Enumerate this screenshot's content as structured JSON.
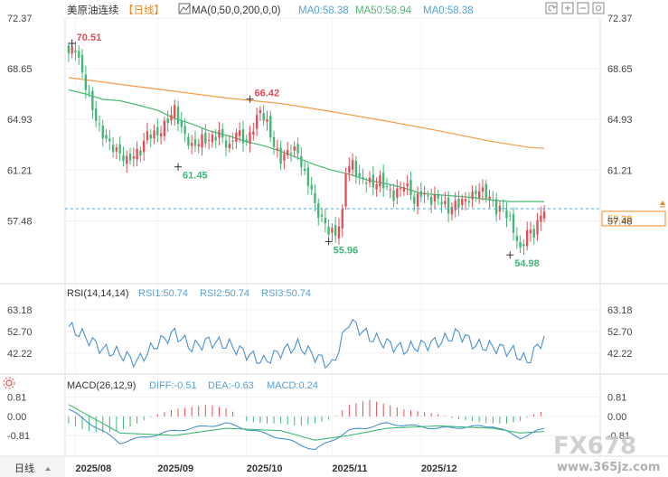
{
  "header": {
    "title": "美原油连续",
    "period": "【日线】",
    "ma_label": "MA(0,50,0,200,0,0)",
    "ma_a": "MA0:58.38",
    "ma_b": "MA50:58.94",
    "ma_c": "MA0:58.38"
  },
  "rsi_panel": {
    "label": "RSI(14,14,14)",
    "rsi1": "RSI1:50.74",
    "rsi2": "RSI2:50.74",
    "rsi3": "RSI3:50.74"
  },
  "macd_panel": {
    "label": "MACD(26,12,9)",
    "diff": "DIFF:-0.51",
    "dea": "DEA:-0.63",
    "macd": "MACD:0.24"
  },
  "bottom": {
    "period_button": "日线",
    "watermark_main": "FX678",
    "watermark_url": "www.365jz.com"
  },
  "icons": [
    "undo-icon",
    "zoom-in-icon",
    "zoom-out-icon",
    "settings-icon",
    "chart-type-icon",
    "macd-settings-icon"
  ],
  "chart_data": [
    {
      "type": "candlestick",
      "x_ticks": [
        "2025/08",
        "2025/09",
        "2025/10",
        "2025/11",
        "2025/12"
      ],
      "y_ticks": [
        "72.37",
        "68.65",
        "64.93",
        "61.21",
        "57.48"
      ],
      "ylim": [
        53.8,
        72.37
      ],
      "current_price": "58.38",
      "annotations": [
        {
          "label": "70.51",
          "kind": "high"
        },
        {
          "label": "61.45",
          "kind": "low"
        },
        {
          "label": "66.42",
          "kind": "high"
        },
        {
          "label": "55.96",
          "kind": "low"
        },
        {
          "label": "54.98",
          "kind": "low"
        }
      ],
      "colors": {
        "up": "#e74c55",
        "down": "#3eb874",
        "ma_long": "#f59c49",
        "ma_mid": "#4aba72",
        "price_line": "#5aa0cf"
      },
      "close_path": [
        [
          0,
          69.8
        ],
        [
          2,
          70.2
        ],
        [
          4,
          68.3
        ],
        [
          6,
          66.5
        ],
        [
          9,
          64.2
        ],
        [
          12,
          63.1
        ],
        [
          15,
          62.4
        ],
        [
          17,
          61.9
        ],
        [
          19,
          62.3
        ],
        [
          21,
          62.6
        ],
        [
          23,
          63.9
        ],
        [
          26,
          63.8
        ],
        [
          28,
          64.5
        ],
        [
          30,
          65.3
        ],
        [
          31,
          65.7
        ],
        [
          33,
          64.2
        ],
        [
          36,
          62.9
        ],
        [
          39,
          63.5
        ],
        [
          41,
          63.4
        ],
        [
          44,
          63.9
        ],
        [
          47,
          62.8
        ],
        [
          49,
          64.1
        ],
        [
          52,
          63.2
        ],
        [
          53,
          63.8
        ],
        [
          56,
          65.6
        ],
        [
          58,
          64.6
        ],
        [
          60,
          63.0
        ],
        [
          62,
          62.0
        ],
        [
          65,
          62.8
        ],
        [
          67,
          62.5
        ],
        [
          69,
          60.8
        ],
        [
          71,
          59.8
        ],
        [
          72,
          58.5
        ],
        [
          74,
          57.6
        ],
        [
          76,
          56.8
        ],
        [
          78,
          56.5
        ],
        [
          80,
          58.0
        ],
        [
          81,
          61.2
        ],
        [
          83,
          61.7
        ],
        [
          85,
          60.5
        ],
        [
          87,
          60.5
        ],
        [
          89,
          60.1
        ],
        [
          91,
          60.5
        ],
        [
          93,
          59.9
        ],
        [
          95,
          59.3
        ],
        [
          97,
          59.9
        ],
        [
          98,
          60.2
        ],
        [
          100,
          59.6
        ],
        [
          101,
          58.8
        ],
        [
          103,
          59.6
        ],
        [
          106,
          59.0
        ],
        [
          108,
          59.2
        ],
        [
          111,
          58.3
        ],
        [
          113,
          58.7
        ],
        [
          116,
          59.0
        ],
        [
          118,
          59.3
        ],
        [
          120,
          59.8
        ],
        [
          123,
          59.2
        ],
        [
          125,
          58.3
        ],
        [
          127,
          58.4
        ],
        [
          129,
          57.5
        ],
        [
          131,
          56.1
        ],
        [
          132,
          55.2
        ],
        [
          134,
          56.7
        ],
        [
          136,
          56.6
        ],
        [
          138,
          57.9
        ],
        [
          139,
          58.4
        ]
      ],
      "ma50_path": [
        [
          0,
          67.1
        ],
        [
          5,
          66.8
        ],
        [
          10,
          66.4
        ],
        [
          15,
          66.3
        ],
        [
          20,
          66.0
        ],
        [
          26,
          65.6
        ],
        [
          31,
          65.0
        ],
        [
          36,
          64.6
        ],
        [
          41,
          64.1
        ],
        [
          47,
          63.7
        ],
        [
          52,
          63.3
        ],
        [
          57,
          63.0
        ],
        [
          62,
          62.6
        ],
        [
          67,
          62.1
        ],
        [
          72,
          61.6
        ],
        [
          77,
          61.2
        ],
        [
          82,
          60.9
        ],
        [
          87,
          60.5
        ],
        [
          93,
          60.2
        ],
        [
          98,
          59.9
        ],
        [
          103,
          59.5
        ],
        [
          108,
          59.4
        ],
        [
          113,
          59.3
        ],
        [
          118,
          59.2
        ],
        [
          124,
          59.0
        ],
        [
          129,
          58.9
        ],
        [
          134,
          58.9
        ],
        [
          139,
          58.9
        ]
      ],
      "ma200_path": [
        [
          0,
          68.0
        ],
        [
          15,
          67.5
        ],
        [
          31,
          67.0
        ],
        [
          46,
          66.5
        ],
        [
          62,
          66.1
        ],
        [
          77,
          65.5
        ],
        [
          93,
          64.8
        ],
        [
          108,
          64.1
        ],
        [
          124,
          63.3
        ],
        [
          134,
          62.9
        ],
        [
          139,
          62.8
        ]
      ]
    },
    {
      "type": "line",
      "name": "RSI",
      "y_ticks": [
        "63.18",
        "52.70",
        "42.22"
      ],
      "ylim": [
        33,
        68
      ],
      "path": [
        [
          0,
          55
        ],
        [
          5,
          50
        ],
        [
          10,
          44
        ],
        [
          15,
          42
        ],
        [
          20,
          38
        ],
        [
          26,
          47
        ],
        [
          31,
          52
        ],
        [
          36,
          45
        ],
        [
          41,
          48
        ],
        [
          47,
          46
        ],
        [
          52,
          42
        ],
        [
          57,
          38
        ],
        [
          62,
          43
        ],
        [
          67,
          46
        ],
        [
          72,
          41
        ],
        [
          77,
          36
        ],
        [
          82,
          58
        ],
        [
          88,
          50
        ],
        [
          93,
          47
        ],
        [
          98,
          44
        ],
        [
          103,
          46
        ],
        [
          109,
          48
        ],
        [
          114,
          52
        ],
        [
          119,
          46
        ],
        [
          125,
          45
        ],
        [
          130,
          43
        ],
        [
          134,
          38
        ],
        [
          139,
          50
        ]
      ]
    },
    {
      "type": "macd",
      "name": "MACD",
      "y_ticks": [
        "0.81",
        "0.00",
        "-0.81"
      ],
      "ylim": [
        -1.6,
        1.1
      ],
      "diff_path": [
        [
          0,
          0.3
        ],
        [
          15,
          -1.1
        ],
        [
          31,
          -0.6
        ],
        [
          46,
          -0.3
        ],
        [
          62,
          -0.9
        ],
        [
          72,
          -1.4
        ],
        [
          82,
          -0.6
        ],
        [
          93,
          -0.3
        ],
        [
          108,
          -0.5
        ],
        [
          124,
          -0.4
        ],
        [
          132,
          -0.9
        ],
        [
          139,
          -0.51
        ]
      ],
      "dea_path": [
        [
          0,
          0.5
        ],
        [
          15,
          -0.7
        ],
        [
          31,
          -0.8
        ],
        [
          46,
          -0.5
        ],
        [
          62,
          -0.6
        ],
        [
          72,
          -1.0
        ],
        [
          82,
          -0.8
        ],
        [
          93,
          -0.5
        ],
        [
          108,
          -0.4
        ],
        [
          124,
          -0.5
        ],
        [
          132,
          -0.7
        ],
        [
          139,
          -0.63
        ]
      ],
      "histogram": [
        [
          0,
          -0.3
        ],
        [
          5,
          -0.6
        ],
        [
          10,
          -0.7
        ],
        [
          15,
          -0.6
        ],
        [
          20,
          -0.3
        ],
        [
          26,
          0.1
        ],
        [
          31,
          0.3
        ],
        [
          36,
          0.4
        ],
        [
          41,
          0.5
        ],
        [
          47,
          0.3
        ],
        [
          52,
          -0.2
        ],
        [
          57,
          -0.3
        ],
        [
          62,
          -0.3
        ],
        [
          67,
          -0.4
        ],
        [
          72,
          -0.3
        ],
        [
          77,
          -0.1
        ],
        [
          82,
          0.5
        ],
        [
          85,
          0.6
        ],
        [
          88,
          0.7
        ],
        [
          93,
          0.5
        ],
        [
          98,
          0.3
        ],
        [
          103,
          0.2
        ],
        [
          108,
          0.1
        ],
        [
          113,
          -0.1
        ],
        [
          118,
          -0.2
        ],
        [
          123,
          -0.3
        ],
        [
          128,
          -0.3
        ],
        [
          132,
          -0.2
        ],
        [
          136,
          0.1
        ],
        [
          139,
          0.24
        ]
      ]
    }
  ]
}
